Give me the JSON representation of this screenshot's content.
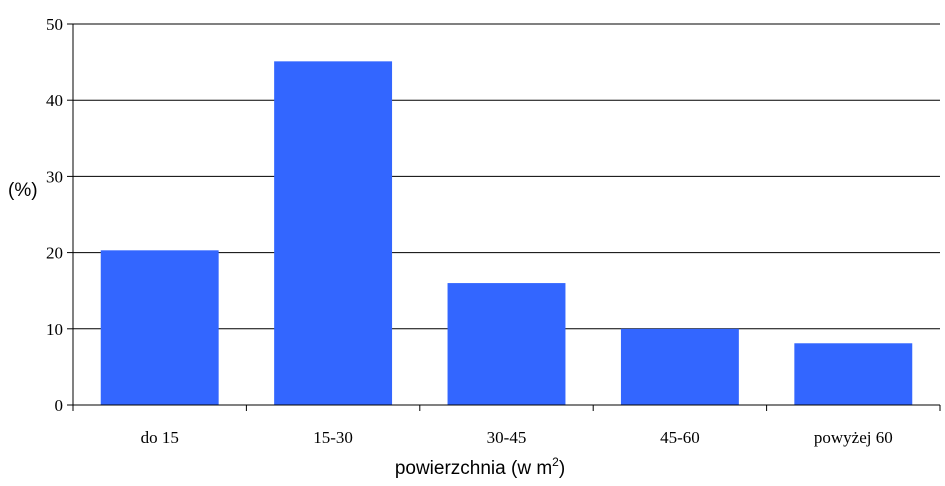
{
  "chart_data": {
    "type": "bar",
    "categories": [
      "do 15",
      "15-30",
      "30-45",
      "45-60",
      "powyżej 60"
    ],
    "values": [
      20.3,
      45.1,
      16.0,
      10.0,
      8.1
    ],
    "title": "",
    "xlabel": "powierzchnia (w m",
    "xlabel_superscript": "2",
    "xlabel_suffix": ")",
    "ylabel": "(%)",
    "ylim": [
      0,
      50
    ],
    "yticks": [
      "0",
      "10",
      "20",
      "30",
      "40",
      "50"
    ],
    "grid": true,
    "legend": "none",
    "bar_color": "#3366FF"
  }
}
